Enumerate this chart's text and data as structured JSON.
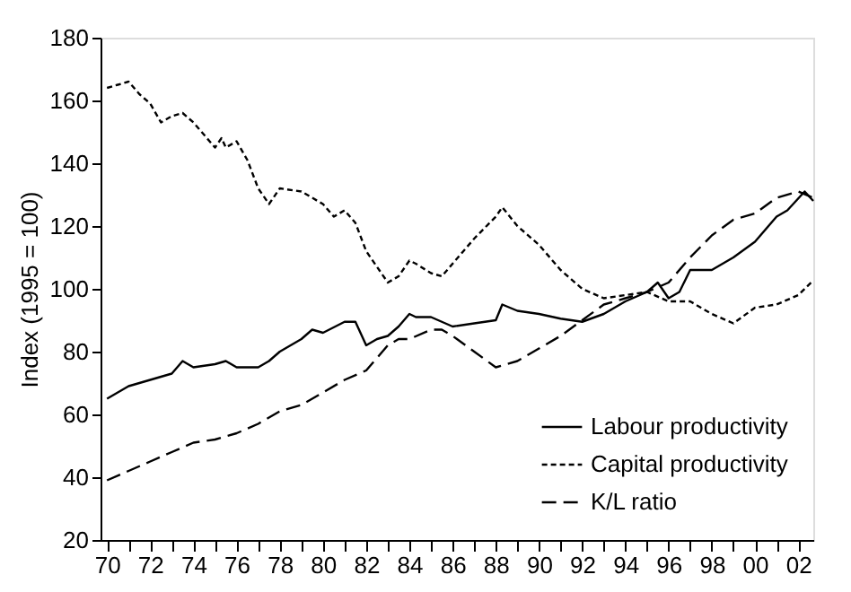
{
  "chart_data": {
    "type": "line",
    "ylabel": "Index (1995 = 100)",
    "xlim": [
      1969.7,
      2002.7
    ],
    "ylim": [
      20,
      180
    ],
    "yticks": [
      20,
      40,
      60,
      80,
      100,
      120,
      140,
      160,
      180
    ],
    "xticks": [
      {
        "value": 1970,
        "label": "70"
      },
      {
        "value": 1971,
        "label": null
      },
      {
        "value": 1972,
        "label": "72"
      },
      {
        "value": 1973,
        "label": null
      },
      {
        "value": 1974,
        "label": "74"
      },
      {
        "value": 1975,
        "label": null
      },
      {
        "value": 1976,
        "label": "76"
      },
      {
        "value": 1977,
        "label": null
      },
      {
        "value": 1978,
        "label": "78"
      },
      {
        "value": 1979,
        "label": null
      },
      {
        "value": 1980,
        "label": "80"
      },
      {
        "value": 1981,
        "label": null
      },
      {
        "value": 1982,
        "label": "82"
      },
      {
        "value": 1983,
        "label": null
      },
      {
        "value": 1984,
        "label": "84"
      },
      {
        "value": 1985,
        "label": null
      },
      {
        "value": 1986,
        "label": "86"
      },
      {
        "value": 1987,
        "label": null
      },
      {
        "value": 1988,
        "label": "88"
      },
      {
        "value": 1989,
        "label": null
      },
      {
        "value": 1990,
        "label": "90"
      },
      {
        "value": 1991,
        "label": null
      },
      {
        "value": 1992,
        "label": "92"
      },
      {
        "value": 1993,
        "label": null
      },
      {
        "value": 1994,
        "label": "94"
      },
      {
        "value": 1995,
        "label": null
      },
      {
        "value": 1996,
        "label": "96"
      },
      {
        "value": 1997,
        "label": null
      },
      {
        "value": 1998,
        "label": "98"
      },
      {
        "value": 1999,
        "label": null
      },
      {
        "value": 2000,
        "label": "00"
      },
      {
        "value": 2001,
        "label": null
      },
      {
        "value": 2002,
        "label": "02"
      }
    ],
    "grid": false,
    "legend": "bottom right",
    "series": [
      {
        "name": "Labour productivity",
        "color": "#000000",
        "line_style": "solid",
        "x": [
          1970,
          1971,
          1972,
          1973,
          1973.5,
          1974,
          1975,
          1975.5,
          1976,
          1977,
          1977.5,
          1978,
          1979,
          1979.5,
          1980,
          1981,
          1981.5,
          1982,
          1982.5,
          1983,
          1983.5,
          1984,
          1984.3,
          1985,
          1986,
          1987,
          1988,
          1988.3,
          1989,
          1990,
          1991,
          1992,
          1993,
          1994,
          1995,
          1995.5,
          1996,
          1996.5,
          1997,
          1998,
          1999,
          2000,
          2001,
          2001.5,
          2002.3,
          2002.7
        ],
        "values": [
          65,
          69,
          71,
          73,
          77,
          75,
          76,
          77,
          75,
          75,
          77,
          80,
          84,
          87,
          86,
          89.5,
          89.5,
          82,
          84,
          85,
          88,
          92,
          91,
          91,
          88,
          89,
          90,
          95,
          93,
          92,
          90.5,
          89.5,
          92,
          96,
          99,
          102,
          97,
          99,
          106,
          106,
          110,
          115,
          123,
          125,
          131,
          128
        ]
      },
      {
        "name": "Capital productivity",
        "color": "#000000",
        "line_style": "dotted",
        "x": [
          1970,
          1970.5,
          1971,
          1971.5,
          1972,
          1972.5,
          1973,
          1973.5,
          1974,
          1975,
          1975.3,
          1975.5,
          1976,
          1976.5,
          1977,
          1977.5,
          1978,
          1979,
          1980,
          1980.5,
          1981,
          1981.5,
          1982,
          1982.5,
          1983,
          1983.5,
          1984,
          1984.3,
          1985,
          1985.5,
          1986,
          1987,
          1988,
          1988.3,
          1989,
          1990,
          1991,
          1992,
          1993,
          1994,
          1995,
          1996,
          1997,
          1998,
          1999,
          2000,
          2001,
          2002,
          2002.6
        ],
        "values": [
          164,
          165,
          166,
          162,
          159,
          153,
          155,
          156,
          153,
          145,
          148,
          145,
          147,
          141,
          132,
          127,
          132,
          131,
          127,
          123,
          125,
          121,
          112,
          107,
          102,
          104,
          109,
          108,
          105,
          104,
          108,
          116,
          123,
          126,
          120,
          114,
          106,
          100,
          97,
          98,
          99,
          96,
          96,
          92,
          89,
          94,
          95,
          98,
          102
        ]
      },
      {
        "name": "K/L ratio",
        "color": "#000000",
        "line_style": "dashed",
        "x": [
          1970,
          1971,
          1972,
          1973,
          1974,
          1975,
          1976,
          1977,
          1978,
          1979,
          1980,
          1981,
          1982,
          1982.5,
          1983,
          1983.5,
          1984,
          1985,
          1985.5,
          1986,
          1987,
          1988,
          1989,
          1990,
          1991,
          1992,
          1993,
          1994,
          1995,
          1996,
          1997,
          1998,
          1999,
          2000,
          2001,
          2002,
          2002.7
        ],
        "values": [
          39,
          42,
          45,
          48,
          51,
          52,
          54,
          57,
          61,
          63,
          67,
          71,
          74,
          78,
          82,
          84,
          84,
          87,
          87,
          85,
          80,
          75,
          77,
          81,
          85,
          90,
          95,
          97,
          99,
          102,
          110,
          117,
          122,
          124,
          129,
          131,
          129
        ]
      }
    ]
  }
}
